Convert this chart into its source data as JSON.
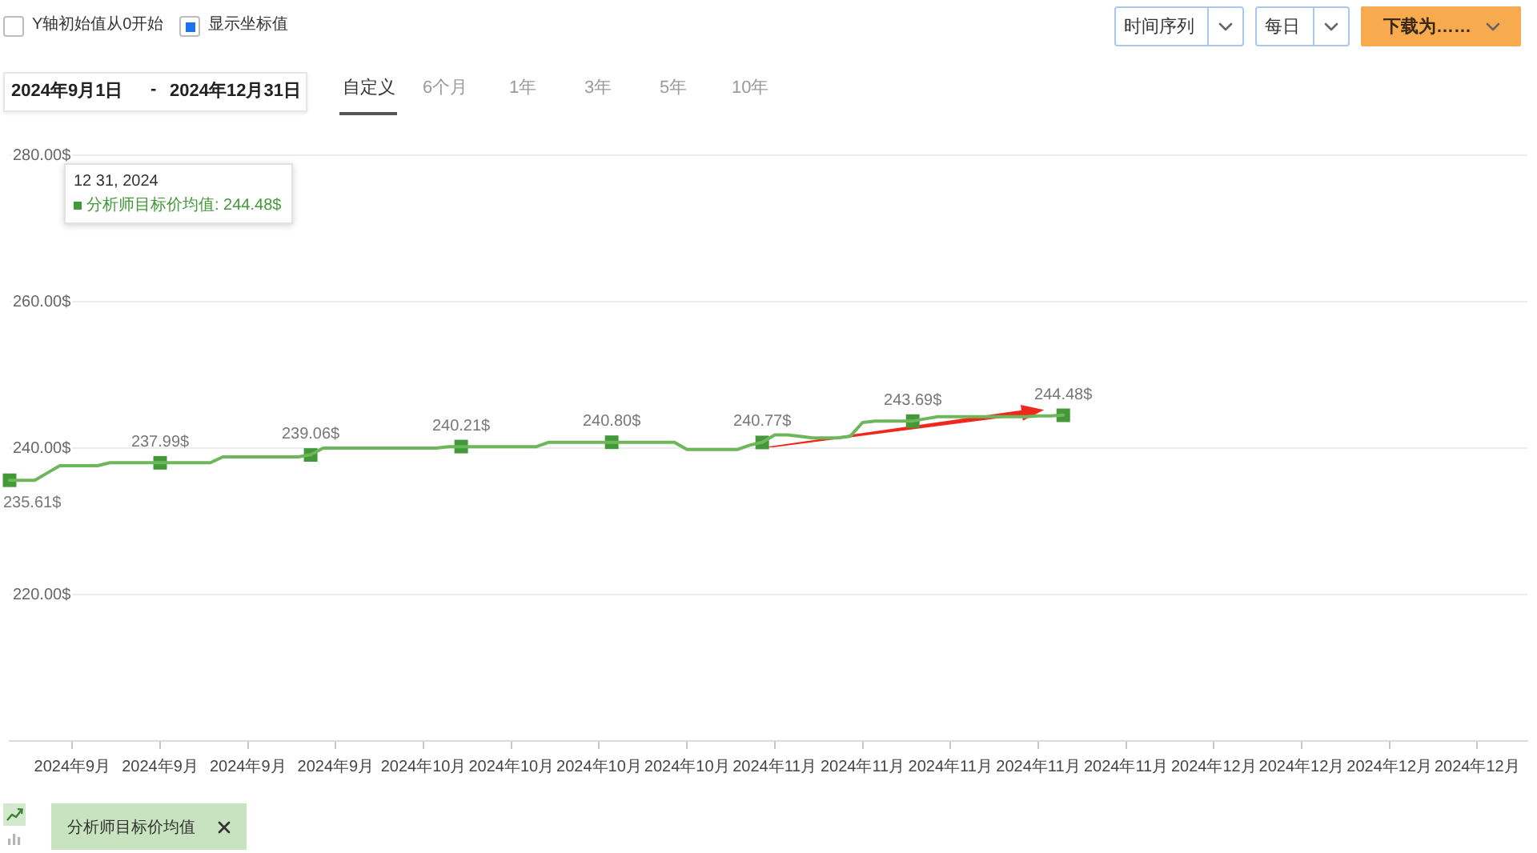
{
  "chart_data": {
    "type": "line",
    "annotations": [
      "12 31, 2024",
      "分析师目标价均值: 244.48$",
      "Y轴初始值从0开始",
      "显示坐标值",
      "2024年9月1日",
      "-",
      "2024年12月31日",
      "自定义",
      "6个月",
      "1年",
      "3年",
      "5年",
      "10年",
      "时间序列",
      "每日",
      "下载为……"
    ],
    "categories": [
      null,
      null,
      null,
      null,
      null,
      "2024年9月",
      null,
      null,
      null,
      null,
      null,
      null,
      "2024年9月",
      null,
      null,
      null,
      null,
      null,
      null,
      "2024年9月",
      null,
      null,
      null,
      null,
      null,
      null,
      "2024年9月",
      null,
      null,
      null,
      null,
      null,
      null,
      "2024年10月",
      null,
      null,
      null,
      null,
      null,
      null,
      "2024年10月",
      null,
      null,
      null,
      null,
      null,
      null,
      "2024年10月",
      null,
      null,
      null,
      null,
      null,
      null,
      "2024年10月",
      null,
      null,
      null,
      null,
      null,
      null,
      "2024年11月",
      null,
      null,
      null,
      null,
      null,
      null,
      "2024年11月",
      null,
      null,
      null,
      null,
      null,
      null,
      "2024年11月",
      null,
      null,
      null,
      null,
      null,
      null,
      "2024年11月",
      null,
      null,
      null,
      null,
      null,
      null,
      "2024年11月",
      null,
      null,
      null,
      null,
      null,
      null,
      "2024年12月",
      null,
      null,
      null,
      null,
      null,
      null,
      "2024年12月",
      null,
      null,
      null,
      null,
      null,
      null,
      "2024年12月",
      null,
      null,
      null,
      null,
      null,
      null,
      "2024年12月",
      null,
      null,
      null,
      null
    ],
    "series": [
      {
        "name": "分析师目标价均值",
        "color": "#6db65a",
        "values": [
          235.6,
          235.6,
          235.6,
          236.6,
          237.6,
          237.6,
          237.6,
          237.6,
          238,
          238,
          238,
          238,
          238,
          238,
          238,
          238,
          238,
          238.8,
          238.8,
          238.8,
          238.8,
          238.8,
          238.8,
          238.8,
          239.1,
          240,
          240,
          240,
          240,
          240,
          240,
          240,
          240,
          240,
          240,
          240.2,
          240.2,
          240.2,
          240.2,
          240.2,
          240.2,
          240.2,
          240.2,
          240.8,
          240.8,
          240.8,
          240.8,
          240.8,
          240.8,
          240.8,
          240.8,
          240.8,
          240.8,
          240.8,
          239.8,
          239.8,
          239.8,
          239.8,
          239.8,
          240.4,
          240.8,
          241.8,
          241.8,
          241.6,
          241.4,
          241.4,
          241.4,
          241.6,
          243.5,
          243.7,
          243.7,
          243.7,
          243.7,
          244,
          244.3,
          244.3,
          244.3,
          244.3,
          244.3,
          244.3,
          244.3,
          244.3,
          244.4,
          244.4,
          244.5,
          null,
          null,
          null,
          null,
          null,
          null,
          null,
          null,
          null,
          null,
          null,
          null,
          null,
          null,
          null,
          null,
          null,
          null,
          null,
          null,
          null,
          null,
          null,
          null,
          null,
          null,
          null,
          null,
          null,
          null,
          null,
          null,
          null,
          null,
          null,
          null,
          null
        ]
      },
      {
        "type": "scatter",
        "color": "#43993a",
        "marker": "square",
        "values": [
          235.61,
          null,
          null,
          null,
          null,
          null,
          null,
          null,
          null,
          null,
          null,
          null,
          237.99,
          null,
          null,
          null,
          null,
          null,
          null,
          null,
          null,
          null,
          null,
          null,
          239.06,
          null,
          null,
          null,
          null,
          null,
          null,
          null,
          null,
          null,
          null,
          null,
          240.21,
          null,
          null,
          null,
          null,
          null,
          null,
          null,
          null,
          null,
          null,
          null,
          240.8,
          null,
          null,
          null,
          null,
          null,
          null,
          null,
          null,
          null,
          null,
          null,
          240.77,
          null,
          null,
          null,
          null,
          null,
          null,
          null,
          null,
          null,
          null,
          null,
          243.69,
          null,
          null,
          null,
          null,
          null,
          null,
          null,
          null,
          null,
          null,
          null,
          244.48,
          null,
          null,
          null,
          null,
          null,
          null,
          null,
          null,
          null,
          null,
          null,
          null,
          null,
          null,
          null,
          null,
          null,
          null,
          null,
          null,
          null,
          null,
          null,
          null,
          null,
          null,
          null,
          null,
          null,
          null,
          null,
          null,
          null,
          null,
          null,
          null,
          null
        ],
        "value_labels": [
          "235.61$",
          null,
          null,
          null,
          null,
          null,
          null,
          null,
          null,
          null,
          null,
          null,
          "237.99$",
          null,
          null,
          null,
          null,
          null,
          null,
          null,
          null,
          null,
          null,
          null,
          "239.06$",
          null,
          null,
          null,
          null,
          null,
          null,
          null,
          null,
          null,
          null,
          null,
          "240.21$",
          null,
          null,
          null,
          null,
          null,
          null,
          null,
          null,
          null,
          null,
          null,
          "240.80$",
          null,
          null,
          null,
          null,
          null,
          null,
          null,
          null,
          null,
          null,
          null,
          "240.77$",
          null,
          null,
          null,
          null,
          null,
          null,
          null,
          null,
          null,
          null,
          null,
          "243.69$",
          null,
          null,
          null,
          null,
          null,
          null,
          null,
          null,
          null,
          null,
          null,
          "244.48$",
          null,
          null,
          null,
          null,
          null,
          null,
          null,
          null,
          null,
          null,
          null,
          null,
          null,
          null,
          null,
          null,
          null,
          null,
          null,
          null,
          null,
          null,
          null,
          null,
          null,
          null,
          null,
          null,
          null,
          null,
          null,
          null,
          null,
          null,
          null,
          null,
          null
        ]
      }
    ],
    "ylim": [
      200,
      280
    ],
    "yticks": [
      {
        "value": 220,
        "label": "220.00$"
      },
      {
        "value": 240,
        "label": "240.00$"
      },
      {
        "value": 260,
        "label": "260.00$"
      },
      {
        "value": 280,
        "label": "280.00$"
      }
    ],
    "grid": "y",
    "legend": "bottom left"
  }
}
